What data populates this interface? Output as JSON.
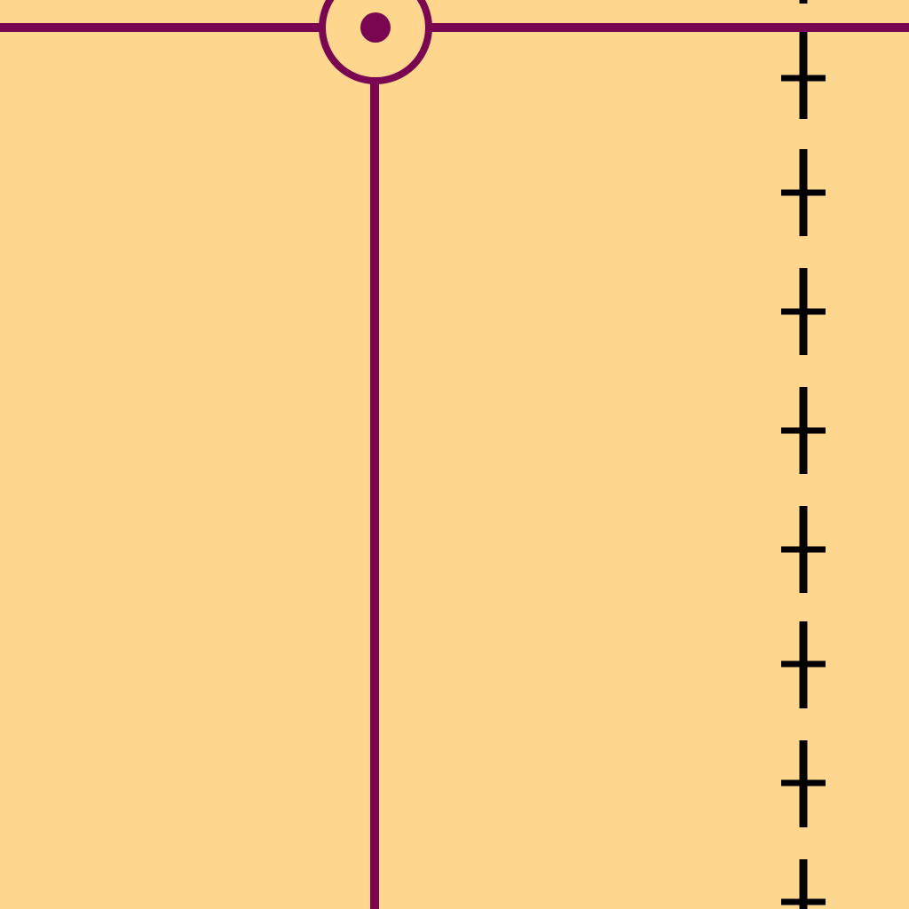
{
  "map": {
    "background_color": "#FFD68D",
    "route_color": "#7A0652",
    "boundary_color": "#000000",
    "routes": [
      {
        "id": "horizontal-route",
        "orientation": "horizontal"
      },
      {
        "id": "vertical-route",
        "orientation": "vertical"
      }
    ],
    "station": {
      "symbol": "circle-with-dot"
    },
    "boundary": {
      "style": "dashed-with-cross-ticks"
    }
  }
}
